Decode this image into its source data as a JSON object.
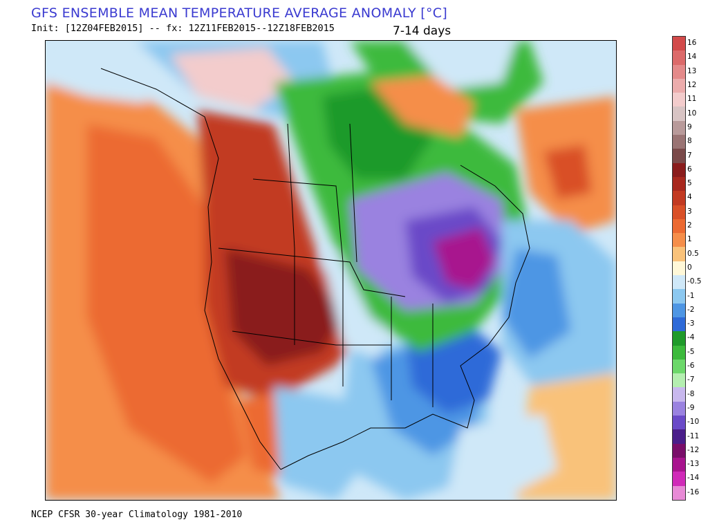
{
  "title": "GFS ENSEMBLE MEAN TEMPERATURE AVERAGE ANOMALY [°C]",
  "init_line": "Init: [12Z04FEB2015] -- fx: 12Z11FEB2015--12Z18FEB2015",
  "period": "7-14 days",
  "footer": "NCEP CFSR 30-year Climatology 1981-2010",
  "colorbar": {
    "levels": [
      {
        "label": "16",
        "color": "#d24a4a"
      },
      {
        "label": "14",
        "color": "#dc6a6a"
      },
      {
        "label": "13",
        "color": "#e48a8a"
      },
      {
        "label": "12",
        "color": "#ecacac"
      },
      {
        "label": "11",
        "color": "#f3cccc"
      },
      {
        "label": "10",
        "color": "#d8c4c4"
      },
      {
        "label": "9",
        "color": "#b89a9a"
      },
      {
        "label": "8",
        "color": "#9a7474"
      },
      {
        "label": "7",
        "color": "#7a4a4a"
      },
      {
        "label": "6",
        "color": "#8a1c1c"
      },
      {
        "label": "5",
        "color": "#a8281e"
      },
      {
        "label": "4",
        "color": "#c23a22"
      },
      {
        "label": "3",
        "color": "#d95028"
      },
      {
        "label": "2",
        "color": "#ec6a32"
      },
      {
        "label": "1",
        "color": "#f58e4a"
      },
      {
        "label": "0.5",
        "color": "#f9c27a"
      },
      {
        "label": "0",
        "color": "#fff8d8"
      },
      {
        "label": "-0.5",
        "color": "#cfe8f8"
      },
      {
        "label": "-1",
        "color": "#8cc8f0"
      },
      {
        "label": "-2",
        "color": "#4e96e4"
      },
      {
        "label": "-3",
        "color": "#2e6ad8"
      },
      {
        "label": "-4",
        "color": "#1f9a2a"
      },
      {
        "label": "-5",
        "color": "#3cba3c"
      },
      {
        "label": "-6",
        "color": "#6cd86a"
      },
      {
        "label": "-7",
        "color": "#b4eeb0"
      },
      {
        "label": "-8",
        "color": "#c8b8ee"
      },
      {
        "label": "-9",
        "color": "#9a82e0"
      },
      {
        "label": "-10",
        "color": "#6a4ac8"
      },
      {
        "label": "-11",
        "color": "#4a1e8a"
      },
      {
        "label": "-12",
        "color": "#7a0e6a"
      },
      {
        "label": "-13",
        "color": "#a8148e"
      },
      {
        "label": "-14",
        "color": "#d02ab8"
      },
      {
        "label": "-16",
        "color": "#e88ad6"
      }
    ]
  },
  "palette": {
    "warm_strong": "#8a1c1c",
    "warm": "#c23a22",
    "warm_mid": "#ec6a32",
    "warm_light": "#f9c27a",
    "neutral": "#fff8d8",
    "cool_light": "#cfe8f8",
    "cool": "#4e96e4",
    "cool_strong": "#2e6ad8",
    "green": "#3cba3c",
    "green_dark": "#1f9a2a",
    "purple": "#9a82e0",
    "purple_dark": "#6a4ac8",
    "magenta": "#a8148e"
  }
}
